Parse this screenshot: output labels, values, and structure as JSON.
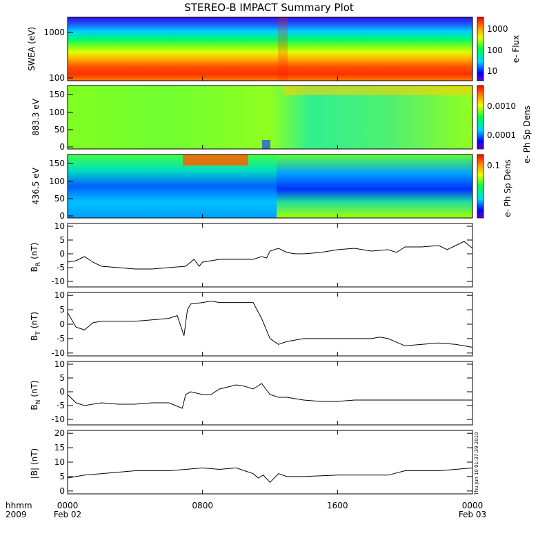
{
  "title": "STEREO-B IMPACT Summary Plot",
  "timestamp": "Thu Jun 10 01:37:39 2010",
  "x_axis": {
    "row1_labels": [
      "hhmm",
      "0000",
      "0800",
      "1600",
      "0000"
    ],
    "row2_labels": [
      "2009",
      "Feb 02",
      "Feb 03"
    ]
  },
  "chart_data": [
    {
      "type": "heatmap",
      "ylabel": "SWEA (eV)",
      "yscale": "log",
      "ylim": [
        100,
        2000
      ],
      "yticks": [
        "1000",
        "100"
      ],
      "colorbar": {
        "label": "e- Flux",
        "scale": "log",
        "ticks": [
          "1000",
          "100",
          "10"
        ]
      }
    },
    {
      "type": "heatmap",
      "ylabel": "883.3 eV",
      "ylim": [
        0,
        180
      ],
      "yticks": [
        "150",
        "100",
        "50",
        "0"
      ],
      "colorbar": {
        "label": "e- Ph Sp Dens",
        "scale": "log",
        "ticks": [
          "0.0010",
          "0.0001"
        ]
      }
    },
    {
      "type": "heatmap",
      "ylabel": "436.5 eV",
      "ylim": [
        0,
        180
      ],
      "yticks": [
        "150",
        "100",
        "50",
        "0"
      ],
      "colorbar": {
        "label": "e- Ph Sp Dens",
        "scale": "log",
        "ticks": [
          "0.1"
        ]
      }
    },
    {
      "type": "line",
      "ylabel_main": "B",
      "ylabel_sub": "R",
      "ylabel_unit": "(nT)",
      "ylim": [
        -12,
        11
      ],
      "yticks": [
        "10",
        "5",
        "0",
        "-5",
        "-10"
      ],
      "x_hours": [
        0,
        0.5,
        1,
        1.5,
        2,
        3,
        4,
        5,
        6,
        7,
        7.5,
        7.8,
        8,
        9,
        10,
        11,
        11.5,
        11.8,
        12,
        12.5,
        13,
        13.5,
        14,
        15,
        16,
        17,
        18,
        19,
        19.5,
        20,
        21,
        22,
        22.5,
        23,
        23.5,
        24
      ],
      "values": [
        -3,
        -2.5,
        -1,
        -3,
        -4.5,
        -5,
        -5.5,
        -5.5,
        -5,
        -4.5,
        -2,
        -4.5,
        -3,
        -2,
        -2,
        -2,
        -1,
        -1.5,
        1,
        2,
        0.5,
        0,
        0,
        0.5,
        1.5,
        2,
        1,
        1.5,
        0.5,
        2.5,
        2.5,
        3,
        1.5,
        3,
        4.5,
        2
      ]
    },
    {
      "type": "line",
      "ylabel_main": "B",
      "ylabel_sub": "T",
      "ylabel_unit": "(nT)",
      "ylim": [
        -11,
        11
      ],
      "yticks": [
        "10",
        "5",
        "0",
        "-5",
        "-10"
      ],
      "x_hours": [
        0,
        0.5,
        1,
        1.5,
        2,
        3,
        4,
        5,
        6,
        6.5,
        6.9,
        7.1,
        7.3,
        8,
        8.5,
        9,
        10,
        11,
        11.5,
        12,
        12.5,
        13,
        14,
        16,
        18,
        18.5,
        19,
        20,
        21,
        22,
        23,
        23.5,
        24
      ],
      "values": [
        4,
        -1,
        -2,
        0.5,
        1,
        1,
        1,
        1.5,
        2,
        3,
        -4,
        5,
        7,
        7.5,
        8,
        7.5,
        7.5,
        7.5,
        2,
        -5,
        -7,
        -6,
        -5,
        -5,
        -5,
        -4.5,
        -5,
        -7.5,
        -7,
        -6.5,
        -7,
        -7.5,
        -8
      ]
    },
    {
      "type": "line",
      "ylabel_main": "B",
      "ylabel_sub": "N",
      "ylabel_unit": "(nT)",
      "ylim": [
        -12,
        11
      ],
      "yticks": [
        "10",
        "5",
        "0",
        "-5",
        "-10"
      ],
      "x_hours": [
        0,
        0.5,
        1,
        2,
        3,
        4,
        5,
        6,
        6.8,
        7,
        7.3,
        8,
        8.5,
        9,
        10,
        10.5,
        11,
        11.5,
        12,
        12.5,
        13,
        14,
        15,
        16,
        17,
        18,
        19,
        20,
        21,
        22,
        23,
        23.5,
        24
      ],
      "values": [
        -1,
        -4,
        -5,
        -4,
        -4.5,
        -4.5,
        -4,
        -4,
        -6,
        -1,
        0,
        -1,
        -1,
        1,
        2.5,
        2,
        1,
        3,
        -1,
        -2,
        -2,
        -3,
        -3.5,
        -3.5,
        -3,
        -3,
        -3,
        -3,
        -3,
        -3,
        -3,
        -3,
        -3
      ]
    },
    {
      "type": "line",
      "ylabel": "|B| (nT)",
      "ylim": [
        -1,
        21
      ],
      "yticks": [
        "20",
        "15",
        "10",
        "5",
        "0"
      ],
      "x_hours": [
        0,
        0.5,
        1,
        2,
        3,
        4,
        5,
        6,
        7,
        8,
        9,
        10,
        11,
        11.3,
        11.6,
        12,
        12.5,
        13,
        14,
        16,
        18,
        19,
        20,
        21,
        22,
        23,
        24
      ],
      "values": [
        4.5,
        5,
        5.5,
        6,
        6.5,
        7,
        7,
        7,
        7.5,
        8,
        7.5,
        8,
        6,
        4.5,
        5.5,
        3,
        6,
        5,
        5,
        5.5,
        5.5,
        5.5,
        7,
        7,
        7,
        7.5,
        8
      ]
    }
  ]
}
